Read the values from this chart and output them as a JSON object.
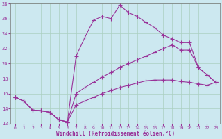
{
  "xlabel": "Windchill (Refroidissement éolien,°C)",
  "bg_color": "#cce8f0",
  "grid_color": "#aacfc0",
  "line_color": "#993399",
  "xlim": [
    -0.5,
    23.5
  ],
  "ylim": [
    12,
    28
  ],
  "yticks": [
    12,
    14,
    16,
    18,
    20,
    22,
    24,
    26,
    28
  ],
  "xticks": [
    0,
    1,
    2,
    3,
    4,
    5,
    6,
    7,
    8,
    9,
    10,
    11,
    12,
    13,
    14,
    15,
    16,
    17,
    18,
    19,
    20,
    21,
    22,
    23
  ],
  "line1_x": [
    0,
    1,
    2,
    3,
    4,
    5,
    6,
    7,
    8,
    9,
    10,
    11,
    12,
    13,
    14,
    15,
    16,
    17,
    18,
    19,
    20,
    21,
    22,
    23
  ],
  "line1_y": [
    15.5,
    15.0,
    13.8,
    13.7,
    13.5,
    12.5,
    12.2,
    21.0,
    23.5,
    25.8,
    26.3,
    26.0,
    27.8,
    26.8,
    26.3,
    25.5,
    24.8,
    23.8,
    23.3,
    22.8,
    22.8,
    19.5,
    18.5,
    17.5
  ],
  "line2_x": [
    0,
    1,
    2,
    3,
    4,
    5,
    6,
    7,
    8,
    9,
    10,
    11,
    12,
    13,
    14,
    15,
    16,
    17,
    18,
    19,
    20,
    21,
    22,
    23
  ],
  "line2_y": [
    15.5,
    15.0,
    13.8,
    13.7,
    13.5,
    12.5,
    12.2,
    16.0,
    16.8,
    17.5,
    18.2,
    18.8,
    19.5,
    20.0,
    20.5,
    21.0,
    21.5,
    22.0,
    22.5,
    21.8,
    21.8,
    19.5,
    18.5,
    17.5
  ],
  "line3_x": [
    0,
    1,
    2,
    3,
    4,
    5,
    6,
    7,
    8,
    9,
    10,
    11,
    12,
    13,
    14,
    15,
    16,
    17,
    18,
    19,
    20,
    21,
    22,
    23
  ],
  "line3_y": [
    15.5,
    15.0,
    13.8,
    13.7,
    13.5,
    12.5,
    12.2,
    14.5,
    15.0,
    15.5,
    16.0,
    16.4,
    16.8,
    17.1,
    17.4,
    17.7,
    17.8,
    17.8,
    17.8,
    17.6,
    17.5,
    17.3,
    17.1,
    17.5
  ]
}
